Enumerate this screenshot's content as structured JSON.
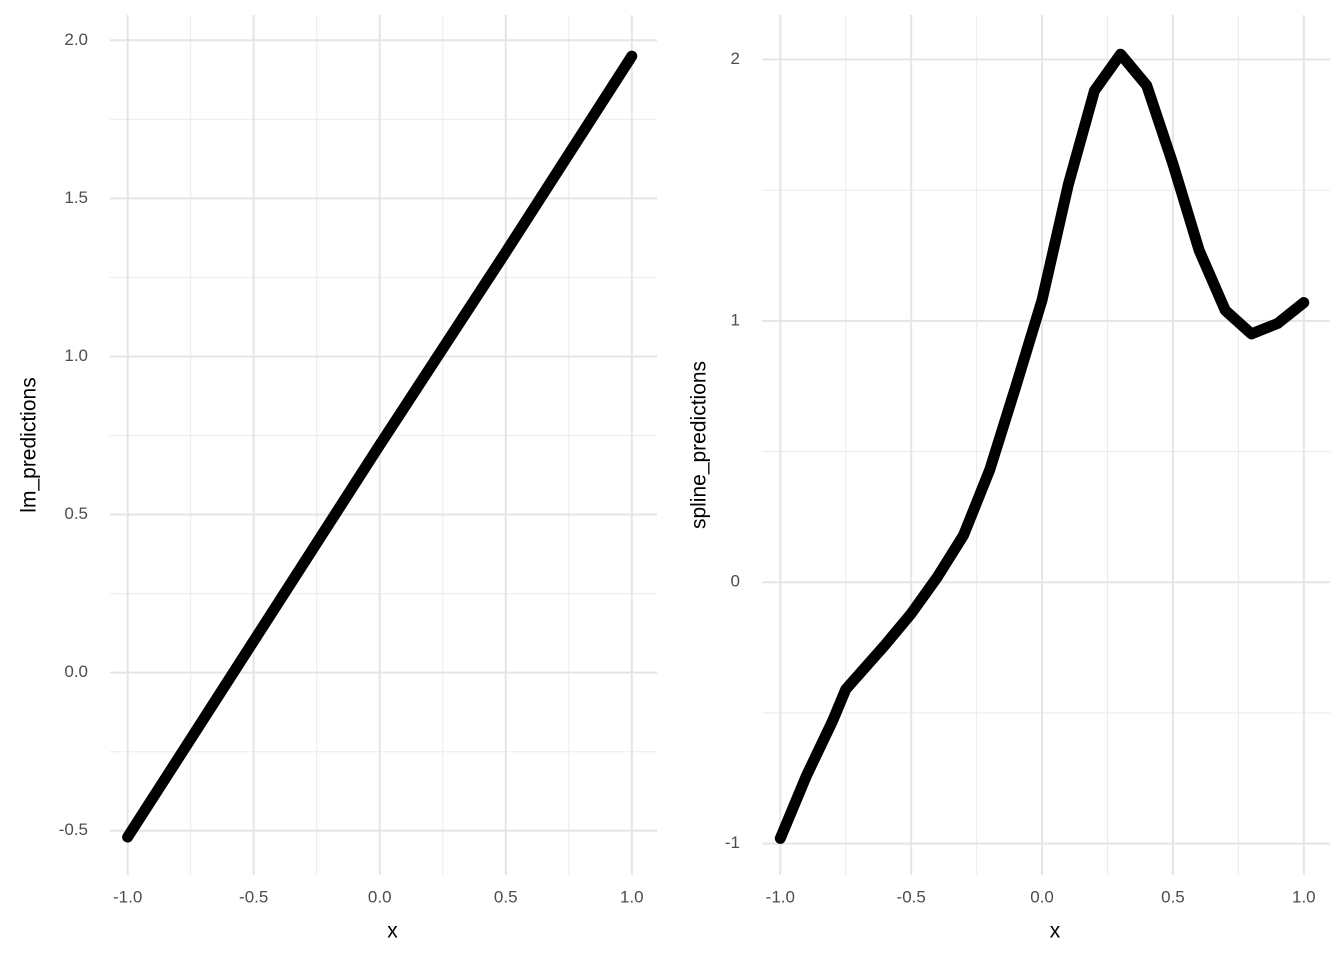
{
  "chart_data": [
    {
      "type": "line",
      "xlabel": "x",
      "ylabel": "lm_predictions",
      "x": [
        -1,
        -0.5,
        0,
        0.5,
        1
      ],
      "values": [
        -0.52,
        0.1,
        0.72,
        1.33,
        1.95
      ],
      "color": "#000000",
      "xlim": [
        -1.07,
        1.1
      ],
      "ylim": [
        -0.64,
        2.08
      ],
      "xticks": [
        {
          "value": -1,
          "label": "-1.0"
        },
        -0.5,
        {
          "value": 0,
          "label": "0.0"
        },
        0.5,
        {
          "value": 1,
          "label": "1.0"
        }
      ],
      "yticks": [
        -0.5,
        {
          "value": 0,
          "label": "0.0"
        },
        0.5,
        {
          "value": 1,
          "label": "1.0"
        },
        1.5,
        {
          "value": 2,
          "label": "2.0"
        }
      ],
      "minor_xticks": [
        -0.75,
        -0.25,
        0.25,
        0.75
      ],
      "minor_yticks": [
        -0.25,
        0.25,
        0.75,
        1.25,
        1.75
      ],
      "grid": true
    },
    {
      "type": "line",
      "xlabel": "x",
      "ylabel": "spline_predictions",
      "x": [
        -1,
        -0.9,
        -0.8,
        -0.75,
        -0.6,
        -0.5,
        -0.4,
        -0.3,
        -0.2,
        -0.1,
        0,
        0.1,
        0.2,
        0.3,
        0.4,
        0.5,
        0.6,
        0.7,
        0.8,
        0.9,
        1
      ],
      "values": [
        -0.98,
        -0.74,
        -0.53,
        -0.41,
        -0.24,
        -0.12,
        0.02,
        0.18,
        0.43,
        0.75,
        1.08,
        1.52,
        1.88,
        2.02,
        1.9,
        1.6,
        1.27,
        1.04,
        0.95,
        0.99,
        1.07
      ],
      "color": "#000000",
      "xlim": [
        -1.07,
        1.1
      ],
      "ylim": [
        -1.12,
        2.17
      ],
      "xticks": [
        {
          "value": -1,
          "label": "-1.0"
        },
        -0.5,
        {
          "value": 0,
          "label": "0.0"
        },
        0.5,
        {
          "value": 1,
          "label": "1.0"
        }
      ],
      "yticks": [
        -1,
        0,
        1,
        2
      ],
      "minor_xticks": [
        -0.75,
        -0.25,
        0.25,
        0.75
      ],
      "minor_yticks": [
        -0.5,
        0.5,
        1.5
      ],
      "grid": true
    }
  ]
}
